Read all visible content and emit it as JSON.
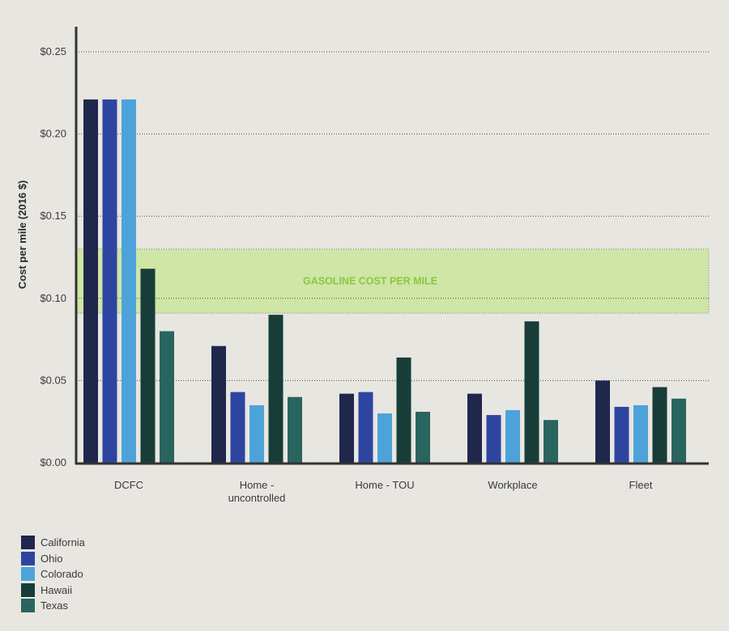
{
  "chart_data": {
    "type": "bar",
    "title": "",
    "xlabel": "",
    "ylabel": "Cost per mile (2016 $)",
    "ylim": [
      0,
      0.27
    ],
    "yticks": [
      0.0,
      0.05,
      0.1,
      0.15,
      0.2,
      0.25
    ],
    "ytick_labels": [
      "$0.00",
      "$0.05",
      "$0.10",
      "$0.15",
      "$0.20",
      "$0.25"
    ],
    "grid": "horizontal-dotted",
    "legend_position": "bottom-left",
    "categories": [
      [
        "DCFC"
      ],
      [
        "Home -",
        "uncontrolled"
      ],
      [
        "Home - TOU"
      ],
      [
        "Workplace"
      ],
      [
        "Fleet"
      ]
    ],
    "series": [
      {
        "name": "California",
        "color": "#20274d",
        "values": [
          0.221,
          0.071,
          0.042,
          0.042,
          0.05
        ]
      },
      {
        "name": "Ohio",
        "color": "#2d45a0",
        "values": [
          0.221,
          0.043,
          0.043,
          0.029,
          0.034
        ]
      },
      {
        "name": "Colorado",
        "color": "#4da3d9",
        "values": [
          0.221,
          0.035,
          0.03,
          0.032,
          0.035
        ]
      },
      {
        "name": "Hawaii",
        "color": "#183d39",
        "values": [
          0.118,
          0.09,
          0.064,
          0.086,
          0.046
        ]
      },
      {
        "name": "Texas",
        "color": "#2a645e",
        "values": [
          0.08,
          0.04,
          0.031,
          0.026,
          0.039
        ]
      }
    ],
    "band": {
      "label": "GASOLINE COST PER MILE",
      "range": [
        0.091,
        0.13
      ],
      "color": "#cfe6a6"
    }
  }
}
